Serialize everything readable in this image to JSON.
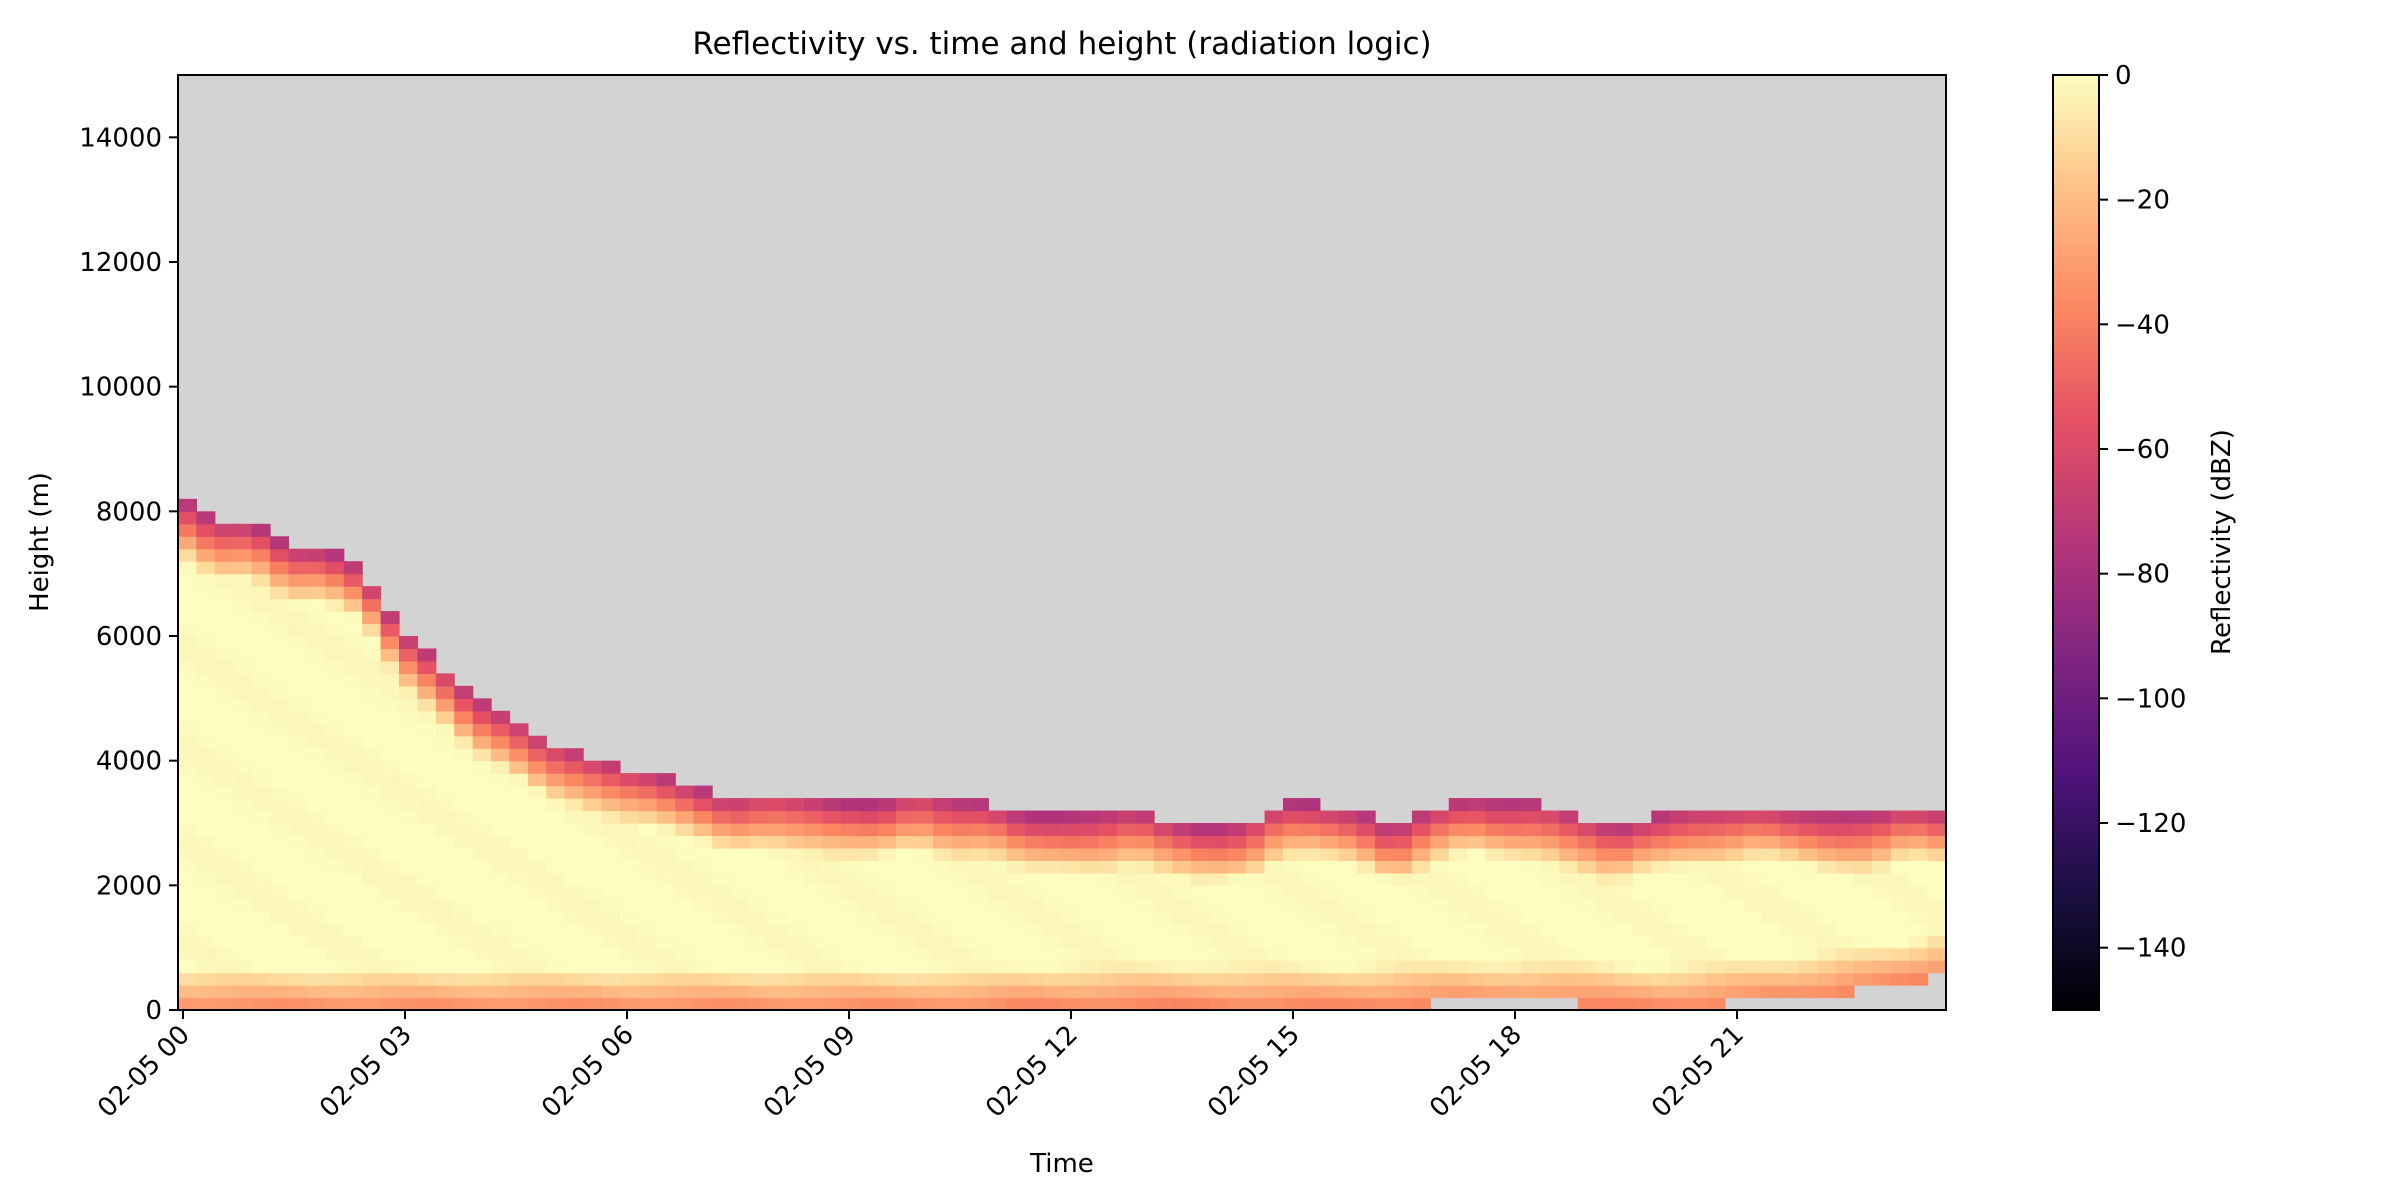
{
  "chart_data": {
    "type": "heatmap",
    "title": "Reflectivity vs. time and height (radiation logic)",
    "xlabel": "Time",
    "ylabel": "Height (m)",
    "colorbar_label": "Reflectivity (dBZ)",
    "colormap": "magma",
    "missing_color": "#d3d3d3",
    "x_range": [
      "02-05 00:00",
      "02-05 24:00"
    ],
    "y_range": [
      0,
      15000
    ],
    "color_range": [
      -150,
      0
    ],
    "xticks": [
      "02-05 00",
      "02-05 03",
      "02-05 06",
      "02-05 09",
      "02-05 12",
      "02-05 15",
      "02-05 18",
      "02-05 21"
    ],
    "yticks": [
      "0",
      "2000",
      "4000",
      "6000",
      "8000",
      "10000",
      "12000",
      "14000"
    ],
    "colorbar_ticks": [
      "0",
      "−20",
      "−40",
      "−60",
      "−80",
      "−100",
      "−120",
      "−140"
    ],
    "legend": "colorbar at right",
    "grid": false,
    "profile": {
      "time_hours": [
        0,
        0.5,
        1,
        1.5,
        2,
        2.5,
        3,
        3.5,
        4,
        4.5,
        5,
        5.5,
        6,
        6.5,
        7,
        7.5,
        8,
        8.5,
        9,
        9.5,
        10,
        10.5,
        11,
        11.5,
        12,
        12.5,
        13,
        13.5,
        14,
        14.5,
        15,
        15.5,
        16,
        16.5,
        17,
        17.5,
        18,
        18.5,
        19,
        19.5,
        20,
        20.5,
        21,
        21.5,
        22,
        22.5,
        23,
        23.5,
        24
      ],
      "cloud_top_m": [
        8200,
        7800,
        7800,
        7400,
        7400,
        7100,
        6100,
        5600,
        5000,
        4700,
        4300,
        4100,
        3900,
        3800,
        3600,
        3400,
        3500,
        3400,
        3300,
        3300,
        3500,
        3300,
        3300,
        3100,
        3100,
        3100,
        3200,
        3000,
        2900,
        3000,
        3300,
        3300,
        3200,
        2900,
        3200,
        3400,
        3300,
        3300,
        3100,
        2900,
        3100,
        3200,
        3200,
        3300,
        3200,
        3100,
        3100,
        3300,
        3200
      ],
      "cloud_base_m": [
        0,
        0,
        0,
        0,
        0,
        0,
        0,
        0,
        0,
        0,
        0,
        0,
        0,
        0,
        0,
        0,
        0,
        0,
        0,
        0,
        0,
        0,
        0,
        50,
        50,
        60,
        60,
        70,
        70,
        60,
        50,
        50,
        50,
        80,
        100,
        110,
        110,
        120,
        100,
        60,
        40,
        60,
        90,
        150,
        200,
        280,
        350,
        450,
        600
      ]
    }
  }
}
